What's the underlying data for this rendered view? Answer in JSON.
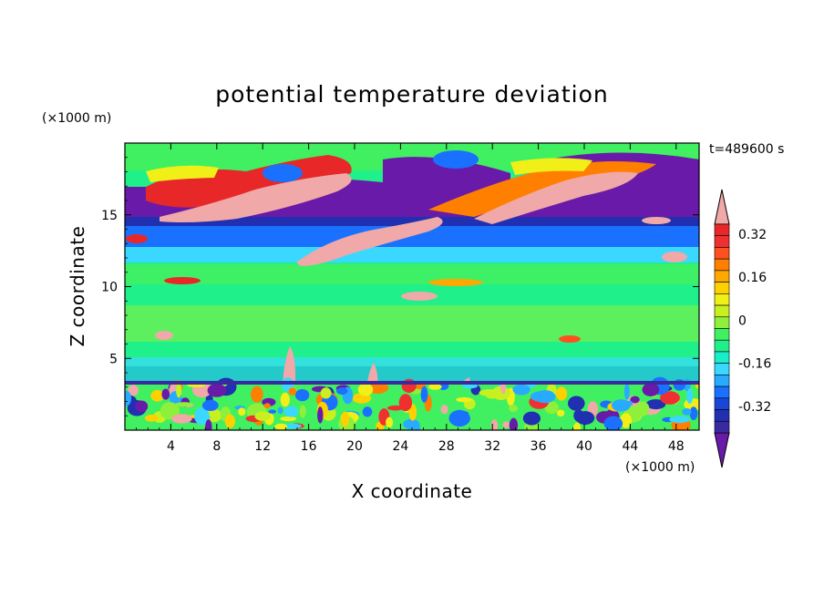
{
  "chart_data": {
    "type": "heatmap",
    "title": "potential temperature deviation",
    "time_label": "t=489600 s",
    "xlabel": "X coordinate",
    "ylabel": "Z coordinate",
    "x_unit": "(×1000 m)",
    "y_unit": "(×1000 m)",
    "xlim": [
      0,
      50
    ],
    "ylim": [
      0,
      20
    ],
    "x_ticks": [
      4,
      8,
      12,
      16,
      20,
      24,
      28,
      32,
      36,
      40,
      44,
      48
    ],
    "y_ticks": [
      5,
      10,
      15
    ],
    "colorbar": {
      "levels": [
        -0.4,
        -0.36,
        -0.32,
        -0.28,
        -0.24,
        -0.2,
        -0.16,
        -0.12,
        -0.08,
        -0.04,
        0,
        0.04,
        0.08,
        0.12,
        0.16,
        0.2,
        0.24,
        0.28,
        0.32,
        0.36
      ],
      "labels": [
        "0.32",
        "0.16",
        "0",
        "-0.16",
        "-0.32"
      ],
      "label_values": [
        0.32,
        0.16,
        0,
        -0.16,
        -0.32
      ],
      "extend": "both",
      "colors": [
        "#6a1aa8",
        "#3a2aa0",
        "#2030b0",
        "#1846d8",
        "#1a70ff",
        "#28aaff",
        "#3ad8ff",
        "#18eec8",
        "#20f08a",
        "#40f060",
        "#8ef03a",
        "#c8f020",
        "#f0f018",
        "#ffd000",
        "#ffa800",
        "#ff8000",
        "#ff5020",
        "#f03030",
        "#e82828",
        "#f0a8a8"
      ]
    },
    "layers": [
      {
        "z": [
          0,
          3.3
        ],
        "description_colors": "mixed turbulent"
      },
      {
        "z": [
          3.3,
          11.5
        ],
        "level": 0.02
      },
      {
        "z": [
          11.5,
          14.5
        ],
        "level": -0.16
      },
      {
        "z": [
          14.5,
          17.2
        ],
        "level": -0.4
      },
      {
        "z": [
          17.2,
          20
        ],
        "level": 0.02
      }
    ]
  },
  "colors": {
    "background": "#ffffff",
    "frame": "#000000"
  }
}
